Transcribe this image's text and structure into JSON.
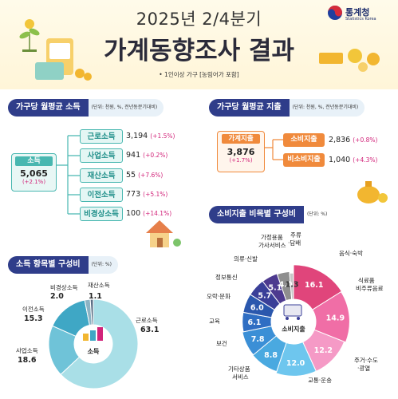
{
  "header": {
    "year_line": "2025년 2/4분기",
    "title": "가계동향조사 결과",
    "note": "• 1인이상 가구 [농림어가 포함]",
    "agency": "통계청",
    "agency_en": "Statistics Korea"
  },
  "income_section": {
    "title": "가구당 월평균 소득",
    "unit": "(단위: 천원, %, 전년동분기대비)",
    "total": {
      "label": "소득",
      "value": "5,065",
      "change": "(+2.1%)"
    },
    "items": [
      {
        "label": "근로소득",
        "value": "3,194",
        "change": "(+1.5%)"
      },
      {
        "label": "사업소득",
        "value": "941",
        "change": "(+0.2%)"
      },
      {
        "label": "재산소득",
        "value": "55",
        "change": "(+7.6%)"
      },
      {
        "label": "이전소득",
        "value": "773",
        "change": "(+5.1%)"
      },
      {
        "label": "비경상소득",
        "value": "100",
        "change": "(+14.1%)"
      }
    ]
  },
  "expense_section": {
    "title": "가구당 월평균 지출",
    "unit": "(단위: 천원, %, 전년동분기대비)",
    "total": {
      "label": "가계지출",
      "value": "3,876",
      "change": "(+1.7%)"
    },
    "items": [
      {
        "label": "소비지출",
        "value": "2,836",
        "change": "(+0.8%)"
      },
      {
        "label": "비소비지출",
        "value": "1,040",
        "change": "(+4.3%)"
      }
    ]
  },
  "income_comp": {
    "title": "소득 항목별 구성비",
    "unit": "(단위: %)",
    "center": "소득",
    "colors": {
      "근로소득": "#a9dfe7",
      "사업소득": "#6fc3d8",
      "이전소득": "#3fa7c5",
      "비경상소득": "#8cb3c4",
      "재산소득": "#5b6f85"
    },
    "slices": [
      {
        "label": "근로소득",
        "value": 63.1
      },
      {
        "label": "사업소득",
        "value": 18.6
      },
      {
        "label": "이전소득",
        "value": 15.3
      },
      {
        "label": "비경상소득",
        "value": 2.0
      },
      {
        "label": "재산소득",
        "value": 1.1
      }
    ],
    "text": {
      "l1": "근로소득",
      "v1": "63.1",
      "l2": "사업소득",
      "v2": "18.6",
      "l3": "이전소득",
      "v3": "15.3",
      "l4": "비경상소득",
      "v4": "2.0",
      "l5": "재산소득",
      "v5": "1.1"
    }
  },
  "consumption_comp": {
    "title": "소비지출 비목별 구성비",
    "unit": "(단위: %)",
    "center": "소비지출",
    "slices": [
      {
        "label": "음식·숙박",
        "value": 16.1,
        "color": "#e0457b"
      },
      {
        "label": "식료품·비주류음료",
        "value": 14.9,
        "color": "#f06ea6"
      },
      {
        "label": "주거·수도·광열",
        "value": 12.2,
        "color": "#f59ac6"
      },
      {
        "label": "교통·운송",
        "value": 12.0,
        "color": "#6ec6ee"
      },
      {
        "label": "기타상품서비스",
        "value": 8.8,
        "color": "#4aa9e0"
      },
      {
        "label": "보건",
        "value": 7.8,
        "color": "#3b8fd6"
      },
      {
        "label": "교육",
        "value": 6.1,
        "color": "#2f6ec3"
      },
      {
        "label": "오락·문화",
        "value": 6.0,
        "color": "#2a57ad"
      },
      {
        "label": "정보통신",
        "value": 5.7,
        "color": "#3a3f98"
      },
      {
        "label": "의류·신발",
        "value": 5.1,
        "color": "#4d3a8f"
      },
      {
        "label": "가정용품·가사서비스",
        "value": 4.0,
        "color": "#8e8e8e"
      },
      {
        "label": "주류·담배",
        "value": 1.3,
        "color": "#c7c7c7"
      }
    ],
    "text": {
      "s1": "음식·숙박",
      "s2a": "식료품",
      "s2b": "비주류음료",
      "s3a": "주거·수도",
      "s3b": "·광열",
      "s4": "교통·운송",
      "s5a": "기타상품",
      "s5b": "서비스",
      "s6": "보건",
      "s7": "교육",
      "s8": "오락·문화",
      "s9": "정보통신",
      "s10": "의류·신발",
      "s11a": "가정용품",
      "s11b": "가사서비스",
      "s12a": "주류",
      "s12b": "·담배",
      "v1": "16.1",
      "v2": "14.9",
      "v3": "12.2",
      "v4": "12.0",
      "v5": "8.8",
      "v6": "7.8",
      "v7": "6.1",
      "v8": "6.0",
      "v9": "5.7",
      "v10": "5.1",
      "v11": "4.0",
      "v12": "1.3"
    }
  }
}
